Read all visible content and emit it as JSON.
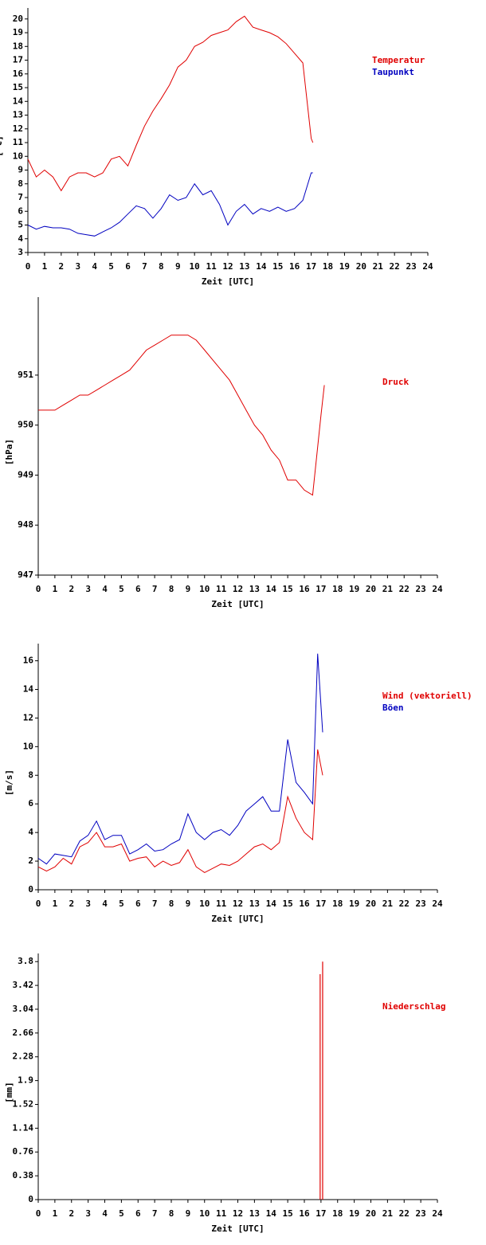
{
  "chart_data": [
    {
      "type": "line",
      "ylabel": "[°C]",
      "xlabel": "Zeit [UTC]",
      "x": [
        0,
        0.5,
        1,
        1.5,
        2,
        2.5,
        3,
        3.5,
        4,
        4.5,
        5,
        5.5,
        6,
        6.5,
        7,
        7.5,
        8,
        8.5,
        9,
        9.5,
        10,
        10.5,
        11,
        11.5,
        12,
        12.5,
        13,
        13.5,
        14,
        14.5,
        15,
        15.5,
        16,
        16.5,
        17,
        17.1
      ],
      "series": [
        {
          "name": "Temperatur",
          "color": "#e00000",
          "values": [
            9.8,
            8.5,
            9.0,
            8.5,
            7.5,
            8.5,
            8.8,
            8.8,
            8.5,
            8.8,
            9.8,
            10.0,
            9.3,
            10.8,
            12.2,
            13.3,
            14.2,
            15.2,
            16.5,
            17.0,
            18.0,
            18.3,
            18.8,
            19.0,
            19.2,
            19.8,
            20.2,
            19.4,
            19.2,
            19.0,
            18.7,
            18.2,
            17.5,
            16.8,
            11.3,
            11.0
          ]
        },
        {
          "name": "Taupunkt",
          "color": "#0000c0",
          "values": [
            5.0,
            4.7,
            4.9,
            4.8,
            4.8,
            4.7,
            4.4,
            4.3,
            4.2,
            4.5,
            4.8,
            5.2,
            5.8,
            6.4,
            6.2,
            5.5,
            6.2,
            7.2,
            6.8,
            7.0,
            8.0,
            7.2,
            7.5,
            6.5,
            5.0,
            6.0,
            6.5,
            5.8,
            6.2,
            6.0,
            6.3,
            6.0,
            6.2,
            6.8,
            8.8,
            8.8
          ]
        }
      ],
      "xlim": [
        0,
        24
      ],
      "xticks": [
        0,
        1,
        2,
        3,
        4,
        5,
        6,
        7,
        8,
        9,
        10,
        11,
        12,
        13,
        14,
        15,
        16,
        17,
        18,
        19,
        20,
        21,
        22,
        23,
        24
      ],
      "ylim": [
        3,
        20.8
      ],
      "yticks": [
        3,
        4,
        5,
        6,
        7,
        8,
        9,
        10,
        11,
        12,
        13,
        14,
        15,
        16,
        17,
        18,
        19,
        20
      ]
    },
    {
      "type": "line",
      "ylabel": "[hPa]",
      "xlabel": "Zeit [UTC]",
      "x": [
        0,
        0.5,
        1,
        1.5,
        2,
        2.5,
        3,
        3.5,
        4,
        4.5,
        5,
        5.5,
        6,
        6.5,
        7,
        7.5,
        8,
        8.5,
        9,
        9.5,
        10,
        10.5,
        11,
        11.5,
        12,
        12.5,
        13,
        13.5,
        14,
        14.5,
        15,
        15.5,
        16,
        16.5,
        17,
        17.2
      ],
      "series": [
        {
          "name": "Druck",
          "color": "#e00000",
          "values": [
            950.3,
            950.3,
            950.3,
            950.4,
            950.5,
            950.6,
            950.6,
            950.7,
            950.8,
            950.9,
            951.0,
            951.1,
            951.3,
            951.5,
            951.6,
            951.7,
            951.8,
            951.8,
            951.8,
            951.7,
            951.5,
            951.3,
            951.1,
            950.9,
            950.6,
            950.3,
            950.0,
            949.8,
            949.5,
            949.3,
            948.9,
            948.9,
            948.7,
            948.6,
            950.2,
            950.8
          ]
        }
      ],
      "xlim": [
        0,
        24
      ],
      "xticks": [
        0,
        1,
        2,
        3,
        4,
        5,
        6,
        7,
        8,
        9,
        10,
        11,
        12,
        13,
        14,
        15,
        16,
        17,
        18,
        19,
        20,
        21,
        22,
        23,
        24
      ],
      "ylim": [
        947,
        952.56
      ],
      "yticks": [
        947,
        948,
        949,
        950,
        951
      ]
    },
    {
      "type": "line",
      "ylabel": "[m/s]",
      "xlabel": "Zeit [UTC]",
      "x": [
        0,
        0.5,
        1,
        1.5,
        2,
        2.5,
        3,
        3.5,
        4,
        4.5,
        5,
        5.5,
        6,
        6.5,
        7,
        7.5,
        8,
        8.5,
        9,
        9.5,
        10,
        10.5,
        11,
        11.5,
        12,
        12.5,
        13,
        13.5,
        14,
        14.5,
        15,
        15.5,
        16,
        16.5,
        16.8,
        17.1
      ],
      "series": [
        {
          "name": "Wind (vektoriell)",
          "color": "#e00000",
          "values": [
            1.6,
            1.3,
            1.6,
            2.2,
            1.8,
            3.0,
            3.3,
            4.0,
            3.0,
            3.0,
            3.2,
            2.0,
            2.2,
            2.3,
            1.6,
            2.0,
            1.7,
            1.9,
            2.8,
            1.6,
            1.2,
            1.5,
            1.8,
            1.7,
            2.0,
            2.5,
            3.0,
            3.2,
            2.8,
            3.3,
            6.5,
            5.0,
            4.0,
            3.5,
            9.8,
            8.0
          ]
        },
        {
          "name": "Böen",
          "color": "#0000c0",
          "values": [
            2.2,
            1.8,
            2.5,
            2.4,
            2.3,
            3.4,
            3.8,
            4.8,
            3.5,
            3.8,
            3.8,
            2.5,
            2.8,
            3.2,
            2.7,
            2.8,
            3.2,
            3.5,
            5.3,
            4.0,
            3.5,
            4.0,
            4.2,
            3.8,
            4.5,
            5.5,
            6.0,
            6.5,
            5.5,
            5.5,
            10.5,
            7.5,
            6.8,
            6.0,
            16.5,
            11.0
          ]
        }
      ],
      "xlim": [
        0,
        24
      ],
      "xticks": [
        0,
        1,
        2,
        3,
        4,
        5,
        6,
        7,
        8,
        9,
        10,
        11,
        12,
        13,
        14,
        15,
        16,
        17,
        18,
        19,
        20,
        21,
        22,
        23,
        24
      ],
      "ylim": [
        0,
        17.2
      ],
      "yticks": [
        0,
        2,
        4,
        6,
        8,
        10,
        12,
        14,
        16
      ]
    },
    {
      "type": "bar",
      "ylabel": "[mm]",
      "xlabel": "Zeit [UTC]",
      "x": [
        16.95,
        17.1
      ],
      "series": [
        {
          "name": "Niederschlag",
          "color": "#e00000",
          "values": [
            3.6,
            3.8
          ]
        }
      ],
      "xlim": [
        0,
        24
      ],
      "xticks": [
        0,
        1,
        2,
        3,
        4,
        5,
        6,
        7,
        8,
        9,
        10,
        11,
        12,
        13,
        14,
        15,
        16,
        17,
        18,
        19,
        20,
        21,
        22,
        23,
        24
      ],
      "ylim": [
        0,
        3.93
      ],
      "yticks": [
        0,
        0.38,
        0.76,
        1.14,
        1.52,
        1.9,
        2.28,
        2.66,
        3.04,
        3.42,
        3.8
      ]
    }
  ]
}
